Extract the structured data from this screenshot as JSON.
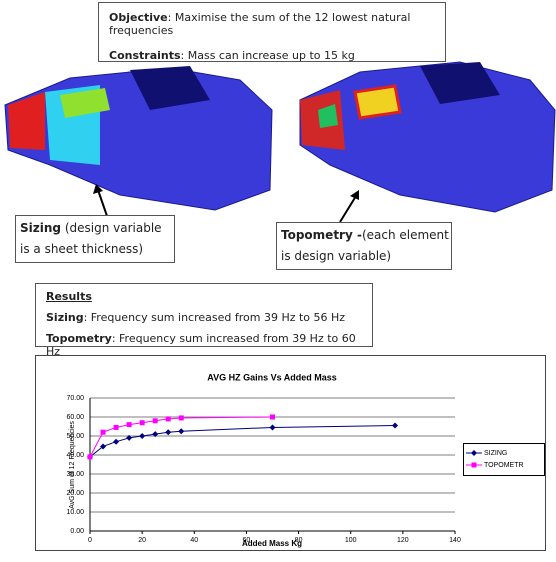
{
  "objective_box": {
    "objective_label": "Objective",
    "objective_text": ": Maximise the sum of the 12 lowest natural frequencies",
    "constraints_label": "Constraints",
    "constraints_text": ": Mass can increase up to 15 kg"
  },
  "captions": [
    {
      "label": "Sizing",
      "text": " (design variable is a sheet thickness)"
    },
    {
      "label": "Topometry -",
      "text": "(each element is design variable)"
    }
  ],
  "results": {
    "heading": "Results",
    "lines": [
      {
        "label": "Sizing",
        "text": ": Frequency sum increased from 39 Hz to 56 Hz"
      },
      {
        "label": "Topometry",
        "text": ": Frequency sum increased from 39 Hz to 60 Hz"
      }
    ]
  },
  "chart_data": {
    "type": "line",
    "title": "AVG HZ Gains Vs Added Mass",
    "x_label": "Added  Mass Kg",
    "y_label": "AvG Sum of 12 Frequencies",
    "xlim": [
      0,
      140
    ],
    "xticks": [
      0,
      20,
      40,
      60,
      80,
      100,
      120,
      140
    ],
    "ylim": [
      0,
      70
    ],
    "yticks": [
      {
        "value": 0,
        "label": "0.00"
      },
      {
        "value": 10,
        "label": "10.00"
      },
      {
        "value": 20,
        "label": "20.00"
      },
      {
        "value": 30,
        "label": "30.00"
      },
      {
        "value": 40,
        "label": "40.00"
      },
      {
        "value": 50,
        "label": "50.00"
      },
      {
        "value": 60,
        "label": "60.00"
      },
      {
        "value": 70,
        "label": "70.00"
      }
    ],
    "grid": true,
    "series": [
      {
        "name": "SIZING",
        "color": "#000080",
        "marker": "diamond",
        "x": [
          0,
          5,
          10,
          15,
          20,
          25,
          30,
          35,
          70,
          117
        ],
        "values": [
          39,
          44.5,
          47,
          49,
          50,
          51,
          52,
          52.5,
          54.5,
          55.5
        ]
      },
      {
        "name": "TOPOMETR",
        "color": "#ff00ff",
        "marker": "square",
        "x": [
          0,
          5,
          10,
          15,
          20,
          25,
          30,
          35,
          70
        ],
        "values": [
          39,
          52,
          54.5,
          56,
          57,
          58,
          59,
          59.5,
          60
        ]
      }
    ]
  }
}
